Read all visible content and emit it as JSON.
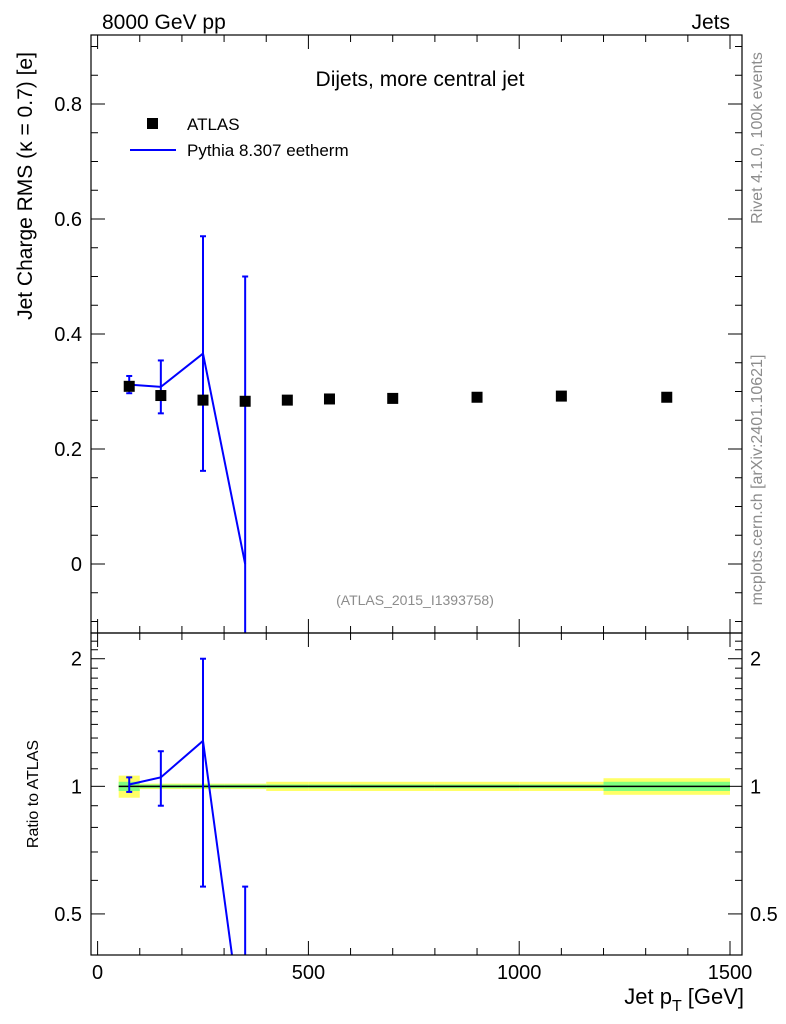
{
  "header": {
    "energy_label": "8000 GeV pp",
    "process_label": "Jets",
    "side_label_top": "Rivet 4.1.0,  100k events",
    "side_label_bottom": "mcplots.cern.ch [arXiv:2401.10621]"
  },
  "chart_data": [
    {
      "type": "scatter",
      "panel": "main",
      "title": "Dijets, more central jet",
      "analysis_tag": "(ATLAS_2015_I1393758)",
      "ylabel": "Jet Charge RMS (κ = 0.7) [e]",
      "xlim": [
        0,
        1500
      ],
      "ylim": [
        -0.12,
        0.92
      ],
      "yticks": [
        0,
        0.2,
        0.4,
        0.6,
        0.8
      ],
      "ytick_labels": [
        "0",
        "0.2",
        "0.4",
        "0.6",
        "0.8"
      ],
      "legend": {
        "position": "top-left",
        "entries": [
          "ATLAS",
          "Pythia 8.307 eetherm"
        ]
      },
      "series": [
        {
          "name": "ATLAS",
          "style": "markers",
          "color": "#000000",
          "x": [
            75,
            150,
            250,
            350,
            450,
            550,
            700,
            900,
            1100,
            1350
          ],
          "y": [
            0.309,
            0.293,
            0.285,
            0.283,
            0.285,
            0.287,
            0.288,
            0.29,
            0.292,
            0.29
          ],
          "bins": [
            [
              50,
              100
            ],
            [
              100,
              200
            ],
            [
              200,
              300
            ],
            [
              300,
              400
            ],
            [
              400,
              500
            ],
            [
              500,
              600
            ],
            [
              600,
              800
            ],
            [
              800,
              1000
            ],
            [
              1000,
              1200
            ],
            [
              1200,
              1500
            ]
          ]
        },
        {
          "name": "Pythia 8.307 eetherm",
          "style": "line",
          "color": "#0000ff",
          "x": [
            75,
            150,
            250,
            350
          ],
          "y": [
            0.312,
            0.308,
            0.366,
            0.0
          ],
          "yerr_low": [
            0.015,
            0.046,
            0.204,
            0.16
          ],
          "yerr_high": [
            0.015,
            0.046,
            0.204,
            0.5
          ]
        }
      ]
    },
    {
      "type": "line",
      "panel": "ratio",
      "ylabel": "Ratio to ATLAS",
      "xlabel": "Jet p_T [GeV]",
      "xlabel_main": "Jet p",
      "xlabel_sub": "T",
      "xlabel_unit": "[GeV]",
      "xlim": [
        0,
        1500
      ],
      "ylim": [
        0.4,
        2.3
      ],
      "yscale": "log",
      "xticks": [
        0,
        500,
        1000,
        1500
      ],
      "xtick_labels": [
        "0",
        "500",
        "1000",
        "1500"
      ],
      "yticks": [
        0.5,
        1,
        2
      ],
      "ytick_labels": [
        "0.5",
        "1",
        "2"
      ],
      "reference": 1.0,
      "uncertainty_band": {
        "bins": [
          [
            50,
            100
          ],
          [
            100,
            200
          ],
          [
            200,
            300
          ],
          [
            300,
            400
          ],
          [
            400,
            500
          ],
          [
            500,
            600
          ],
          [
            600,
            800
          ],
          [
            800,
            1000
          ],
          [
            1000,
            1200
          ],
          [
            1200,
            1500
          ]
        ],
        "stat_low": [
          0.975,
          0.99,
          0.99,
          0.99,
          0.99,
          0.99,
          0.99,
          0.99,
          0.99,
          0.975
        ],
        "stat_high": [
          1.025,
          1.01,
          1.01,
          1.01,
          1.01,
          1.01,
          1.01,
          1.01,
          1.01,
          1.025
        ],
        "total_low": [
          0.94,
          0.985,
          0.985,
          0.985,
          0.975,
          0.975,
          0.975,
          0.975,
          0.975,
          0.955
        ],
        "total_high": [
          1.06,
          1.015,
          1.015,
          1.015,
          1.025,
          1.025,
          1.025,
          1.025,
          1.025,
          1.045
        ],
        "colors": {
          "inner": "#80ff80",
          "outer": "#ffff66"
        }
      },
      "series": [
        {
          "name": "Pythia 8.307 eetherm",
          "color": "#0000ff",
          "x": [
            75,
            150,
            250,
            350
          ],
          "y": [
            1.01,
            1.05,
            1.28,
            0.0
          ],
          "yerr_low": [
            0.04,
            0.15,
            0.7,
            2.0
          ],
          "yerr_high": [
            0.04,
            0.16,
            0.72,
            0.58
          ]
        }
      ]
    }
  ]
}
